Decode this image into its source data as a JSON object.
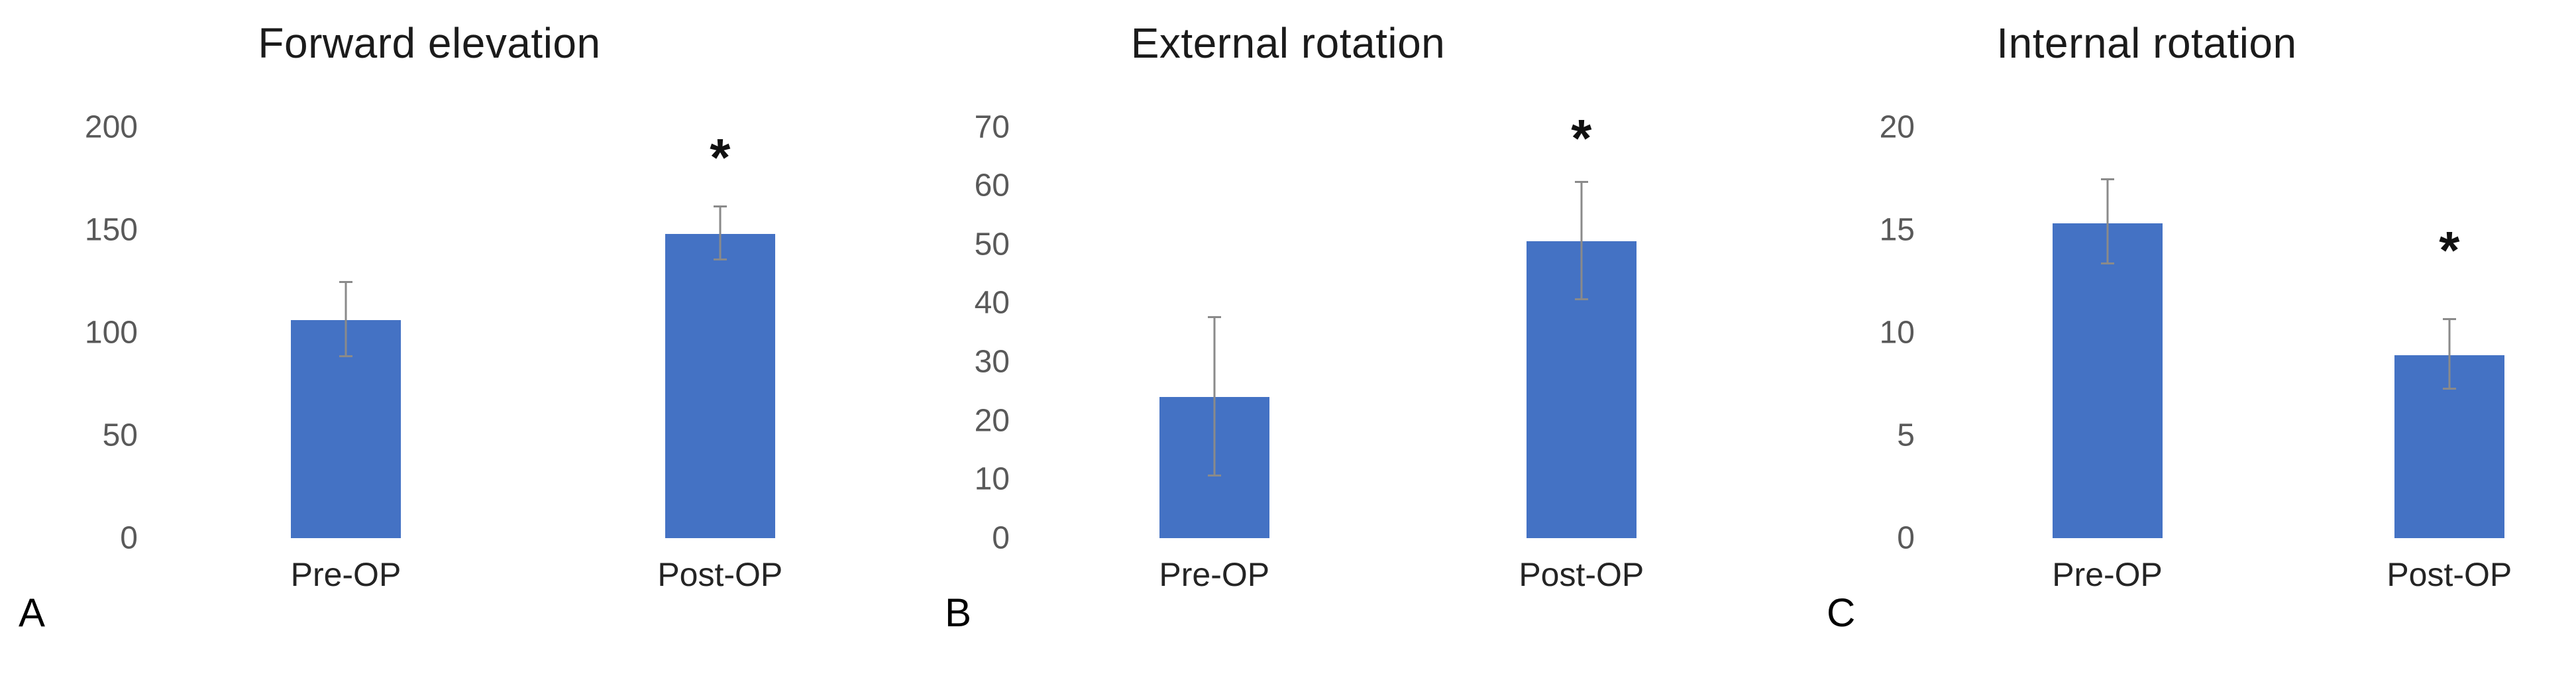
{
  "figure": {
    "background": "#ffffff",
    "bar_color": "#4472C4",
    "error_bar_color": "#8a8a8a",
    "tick_label_color": "#595959",
    "title_color": "#1b1b1b",
    "significance_symbol": "*"
  },
  "chart_data": [
    {
      "type": "bar",
      "panel_label": "A",
      "title": "Forward elevation",
      "categories": [
        "Pre-OP",
        "Post-OP"
      ],
      "values": [
        106,
        148
      ],
      "error_bars": [
        {
          "low": 88,
          "high": 124
        },
        {
          "low": 135,
          "high": 161
        }
      ],
      "ylim": [
        0,
        200
      ],
      "yticks": [
        0,
        50,
        100,
        150,
        200
      ],
      "grid": false,
      "legend": "none",
      "significance": {
        "category_index": 1,
        "symbol": "*",
        "y": 185
      }
    },
    {
      "type": "bar",
      "panel_label": "B",
      "title": "External rotation",
      "categories": [
        "Pre-OP",
        "Post-OP"
      ],
      "values": [
        24,
        50.5
      ],
      "error_bars": [
        {
          "low": 10.5,
          "high": 37.5
        },
        {
          "low": 40.5,
          "high": 60.5
        }
      ],
      "ylim": [
        0,
        70
      ],
      "yticks": [
        0,
        10,
        20,
        30,
        40,
        50,
        60,
        70
      ],
      "grid": false,
      "legend": "none",
      "significance": {
        "category_index": 1,
        "symbol": "*",
        "y": 68
      }
    },
    {
      "type": "bar",
      "panel_label": "C",
      "title": "Internal rotation",
      "categories": [
        "Pre-OP",
        "Post-OP"
      ],
      "values": [
        15.3,
        8.9
      ],
      "error_bars": [
        {
          "low": 13.3,
          "high": 17.4
        },
        {
          "low": 7.2,
          "high": 10.6
        }
      ],
      "ylim": [
        0,
        20
      ],
      "yticks": [
        0,
        5,
        10,
        15,
        20
      ],
      "grid": false,
      "legend": "none",
      "significance": {
        "category_index": 1,
        "symbol": "*",
        "y": 14
      }
    }
  ]
}
